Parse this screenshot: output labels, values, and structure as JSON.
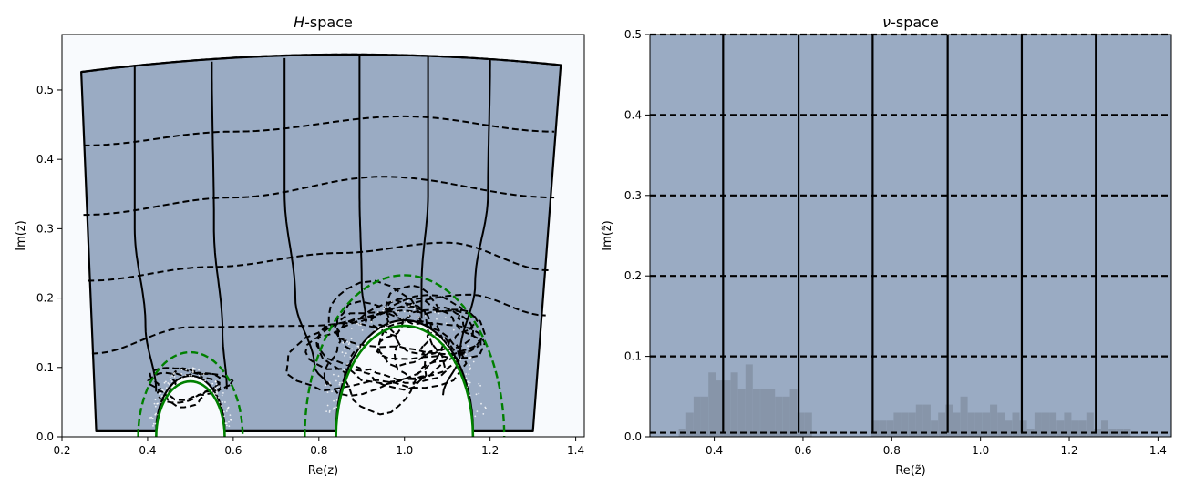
{
  "colors": {
    "fill": "#9aabc3",
    "plot_bg": "#f8fafd",
    "grid_line": "#000000",
    "circle": "#008000",
    "hist": "#8795a9"
  },
  "chart_data": [
    {
      "type": "area",
      "title_pre": "H",
      "title_post": "-space",
      "xlabel": "Re(z)",
      "ylabel": "Im(z)",
      "xlim": [
        0.2,
        1.42
      ],
      "ylim": [
        0.0,
        0.58
      ],
      "xticks": [
        "0.2",
        "0.4",
        "0.6",
        "0.8",
        "1.0",
        "1.2",
        "1.4"
      ],
      "yticks": [
        "0.0",
        "0.1",
        "0.2",
        "0.3",
        "0.4",
        "0.5"
      ],
      "region_corners": {
        "top_left": [
          0.245,
          0.526
        ],
        "top_right": [
          1.365,
          0.536
        ],
        "bottom_left": [
          0.28,
          0.008
        ],
        "bottom_right": [
          1.3,
          0.008
        ]
      },
      "top_peak": 0.551,
      "cusps": [
        {
          "center": 0.5,
          "solid_radius": 0.08,
          "dashed_radius": 0.122
        },
        {
          "center": 1.0,
          "solid_radius": 0.16,
          "dashed_radius": 0.233
        }
      ],
      "dashed_levels": [
        {
          "x": [
            0.25,
            0.6,
            1.0,
            1.35
          ],
          "y": [
            0.42,
            0.44,
            0.462,
            0.44
          ]
        },
        {
          "x": [
            0.25,
            0.6,
            0.95,
            1.35
          ],
          "y": [
            0.32,
            0.345,
            0.375,
            0.345
          ]
        },
        {
          "x": [
            0.26,
            0.55,
            0.85,
            1.1,
            1.34
          ],
          "y": [
            0.225,
            0.245,
            0.265,
            0.28,
            0.24
          ]
        },
        {
          "x": [
            0.27,
            0.5,
            0.78,
            1.15,
            1.33
          ],
          "y": [
            0.12,
            0.158,
            0.16,
            0.205,
            0.175
          ]
        }
      ],
      "solid_curves": [
        {
          "x": [
            0.37,
            0.37,
            0.395,
            0.42
          ],
          "y": [
            0.536,
            0.3,
            0.16,
            0.065
          ]
        },
        {
          "x": [
            0.55,
            0.555,
            0.575,
            0.585
          ],
          "y": [
            0.541,
            0.3,
            0.15,
            0.068
          ]
        },
        {
          "x": [
            0.72,
            0.72,
            0.745,
            0.79,
            0.82
          ],
          "y": [
            0.546,
            0.35,
            0.2,
            0.1,
            0.075
          ]
        },
        {
          "x": [
            0.895,
            0.895,
            0.9,
            0.91
          ],
          "y": [
            0.55,
            0.35,
            0.22,
            0.165
          ]
        },
        {
          "x": [
            1.055,
            1.055,
            1.04,
            1.04
          ],
          "y": [
            0.548,
            0.35,
            0.22,
            0.17
          ]
        },
        {
          "x": [
            1.2,
            1.195,
            1.165,
            1.13,
            1.09
          ],
          "y": [
            0.544,
            0.35,
            0.22,
            0.12,
            0.06
          ]
        }
      ]
    },
    {
      "type": "area",
      "title_pre": "ν",
      "title_post": "-space",
      "xlabel": "Re(z̃)",
      "ylabel": "Im(z̃)",
      "xlim": [
        0.255,
        1.43
      ],
      "ylim": [
        0.0,
        0.5
      ],
      "xticks": [
        "0.4",
        "0.6",
        "0.8",
        "1.0",
        "1.2",
        "1.4"
      ],
      "yticks": [
        "0.0",
        "0.1",
        "0.2",
        "0.3",
        "0.4",
        "0.5"
      ],
      "vertical_lines": [
        0.42,
        0.59,
        0.757,
        0.926,
        1.093,
        1.26
      ],
      "horizontal_dashed": [
        0.005,
        0.1,
        0.2,
        0.3,
        0.4
      ],
      "hist_x_start": 0.32,
      "hist_bin_width": 0.0167,
      "hist_values": [
        0.01,
        0.03,
        0.05,
        0.05,
        0.08,
        0.07,
        0.07,
        0.08,
        0.06,
        0.09,
        0.06,
        0.06,
        0.06,
        0.05,
        0.05,
        0.06,
        0.03,
        0.03,
        0,
        0,
        0,
        0,
        0,
        0,
        0,
        0,
        0.02,
        0.02,
        0.02,
        0.03,
        0.03,
        0.03,
        0.04,
        0.04,
        0.02,
        0.03,
        0.04,
        0.03,
        0.05,
        0.03,
        0.03,
        0.03,
        0.04,
        0.03,
        0.02,
        0.03,
        0.02,
        0.01,
        0.03,
        0.03,
        0.03,
        0.02,
        0.03,
        0.02,
        0.02,
        0.03,
        0.01,
        0.02,
        0.01,
        0.01,
        0.01
      ]
    }
  ]
}
